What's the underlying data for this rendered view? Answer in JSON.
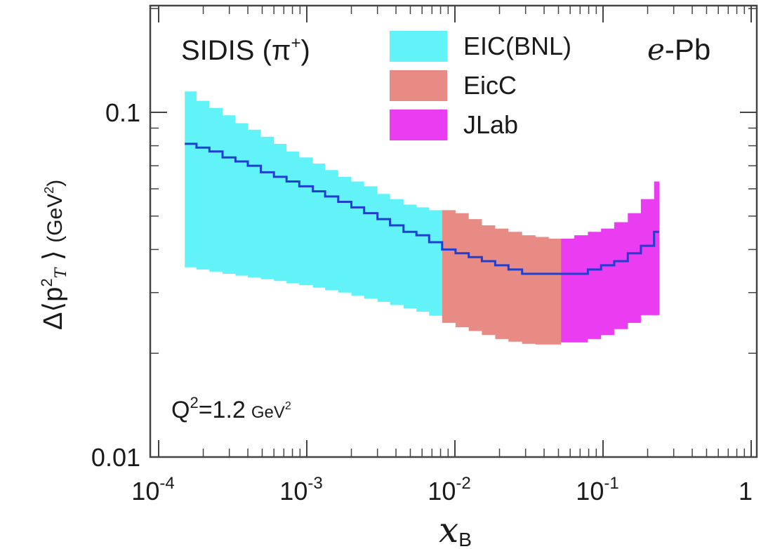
{
  "chart_data": {
    "type": "area",
    "process_label": "SIDIS",
    "process_particle": "π",
    "process_charge": "+",
    "system_label_italic": "e",
    "system_label_rest": "-Pb",
    "q2_label": "Q",
    "q2_value": "=1.2",
    "q2_unit": "GeV",
    "xlabel": "x",
    "xlabel_sub": "B",
    "ylabel": "Δ⟨p",
    "ylabel_sub": "T",
    "ylabel_unit": "(GeV",
    "x_scale": "log",
    "y_scale": "log",
    "xlim": [
      0.0001,
      1
    ],
    "ylim": [
      0.01,
      0.2
    ],
    "x_ticks": [
      {
        "value": 0.0001,
        "base": "10",
        "exp": "-4"
      },
      {
        "value": 0.001,
        "base": "10",
        "exp": "-3"
      },
      {
        "value": 0.01,
        "base": "10",
        "exp": "-2"
      },
      {
        "value": 0.1,
        "base": "10",
        "exp": "-1"
      },
      {
        "value": 1,
        "base": "1",
        "exp": ""
      }
    ],
    "y_ticks": [
      {
        "value": 0.1,
        "label": "0.1"
      },
      {
        "value": 0.01,
        "label": "0.01"
      }
    ],
    "legend_position": "top-center",
    "series": [
      {
        "name": "EIC(BNL)",
        "color": "#62f3f8",
        "x": [
          0.00015,
          0.00018,
          0.00022,
          0.00027,
          0.00033,
          0.0004,
          0.00049,
          0.0006,
          0.00073,
          0.00089,
          0.0011,
          0.00133,
          0.00163,
          0.002,
          0.00244,
          0.003,
          0.00365,
          0.0045,
          0.0055,
          0.0067,
          0.0082
        ],
        "upper": [
          0.115,
          0.108,
          0.103,
          0.098,
          0.093,
          0.089,
          0.085,
          0.081,
          0.077,
          0.074,
          0.071,
          0.068,
          0.065,
          0.063,
          0.061,
          0.058,
          0.056,
          0.054,
          0.053,
          0.052,
          0.052
        ],
        "lower": [
          0.0355,
          0.035,
          0.0345,
          0.034,
          0.0336,
          0.0332,
          0.0328,
          0.0324,
          0.0319,
          0.0315,
          0.031,
          0.0305,
          0.03,
          0.0294,
          0.0288,
          0.0282,
          0.0276,
          0.027,
          0.0264,
          0.0257,
          0.0251
        ]
      },
      {
        "name": "EicC",
        "color": "#e98b85",
        "x": [
          0.0082,
          0.0101,
          0.0124,
          0.0152,
          0.0187,
          0.023,
          0.0284,
          0.035,
          0.043,
          0.052
        ],
        "upper": [
          0.052,
          0.051,
          0.049,
          0.047,
          0.046,
          0.045,
          0.044,
          0.0435,
          0.043,
          0.043
        ],
        "lower": [
          0.0245,
          0.0238,
          0.0232,
          0.0226,
          0.022,
          0.0216,
          0.0213,
          0.0212,
          0.0212,
          0.0212
        ]
      },
      {
        "name": "JLab",
        "color": "#ea3cf0",
        "x": [
          0.052,
          0.064,
          0.079,
          0.097,
          0.119,
          0.147,
          0.18,
          0.221,
          0.24
        ],
        "upper": [
          0.043,
          0.044,
          0.045,
          0.046,
          0.048,
          0.051,
          0.056,
          0.063,
          0.063
        ],
        "lower": [
          0.0215,
          0.0215,
          0.022,
          0.0226,
          0.0235,
          0.0245,
          0.0258,
          0.0258,
          0.0258
        ]
      },
      {
        "name": "",
        "color": "#1f3fd0",
        "x": [
          0.00015,
          0.00018,
          0.00022,
          0.00027,
          0.00033,
          0.0004,
          0.00049,
          0.0006,
          0.00073,
          0.00089,
          0.0011,
          0.00133,
          0.00163,
          0.002,
          0.00244,
          0.003,
          0.00365,
          0.0045,
          0.0055,
          0.0067,
          0.0082,
          0.0101,
          0.0124,
          0.0152,
          0.0187,
          0.023,
          0.0284,
          0.035,
          0.043,
          0.052,
          0.064,
          0.079,
          0.097,
          0.119,
          0.147,
          0.18,
          0.221,
          0.24
        ],
        "y": [
          0.081,
          0.079,
          0.077,
          0.074,
          0.072,
          0.07,
          0.067,
          0.065,
          0.063,
          0.061,
          0.059,
          0.057,
          0.055,
          0.053,
          0.051,
          0.049,
          0.047,
          0.045,
          0.044,
          0.042,
          0.04,
          0.039,
          0.038,
          0.037,
          0.036,
          0.035,
          0.034,
          0.034,
          0.034,
          0.034,
          0.034,
          0.035,
          0.036,
          0.037,
          0.039,
          0.041,
          0.045,
          0.045
        ]
      }
    ]
  }
}
